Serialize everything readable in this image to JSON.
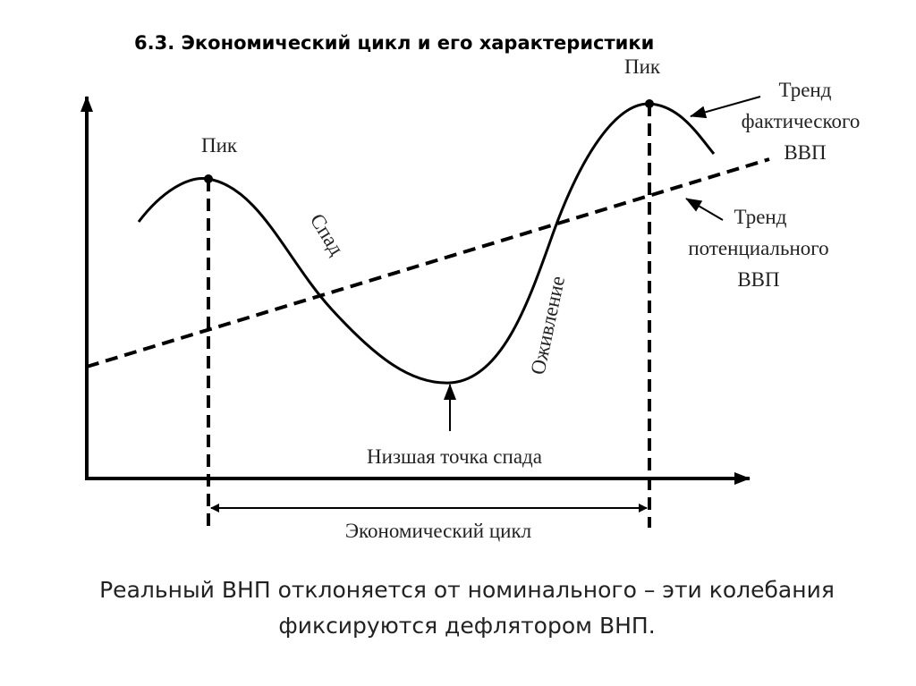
{
  "title": "6.3. Экономический цикл и его характеристики",
  "diagram": {
    "peak_left": "Пик",
    "peak_right": "Пик",
    "recession": "Спад",
    "recovery": "Оживление",
    "trough": "Низшая точка спада",
    "cycle": "Экономический цикл",
    "actual_trend": [
      "Тренд",
      "фактического",
      "ВВП"
    ],
    "potential_trend": [
      "Тренд",
      "потенциального",
      "ВВП"
    ]
  },
  "caption": [
    "Реальный ВНП отклоняется от номинального – эти колебания",
    "фиксируются дефлятором ВНП."
  ]
}
